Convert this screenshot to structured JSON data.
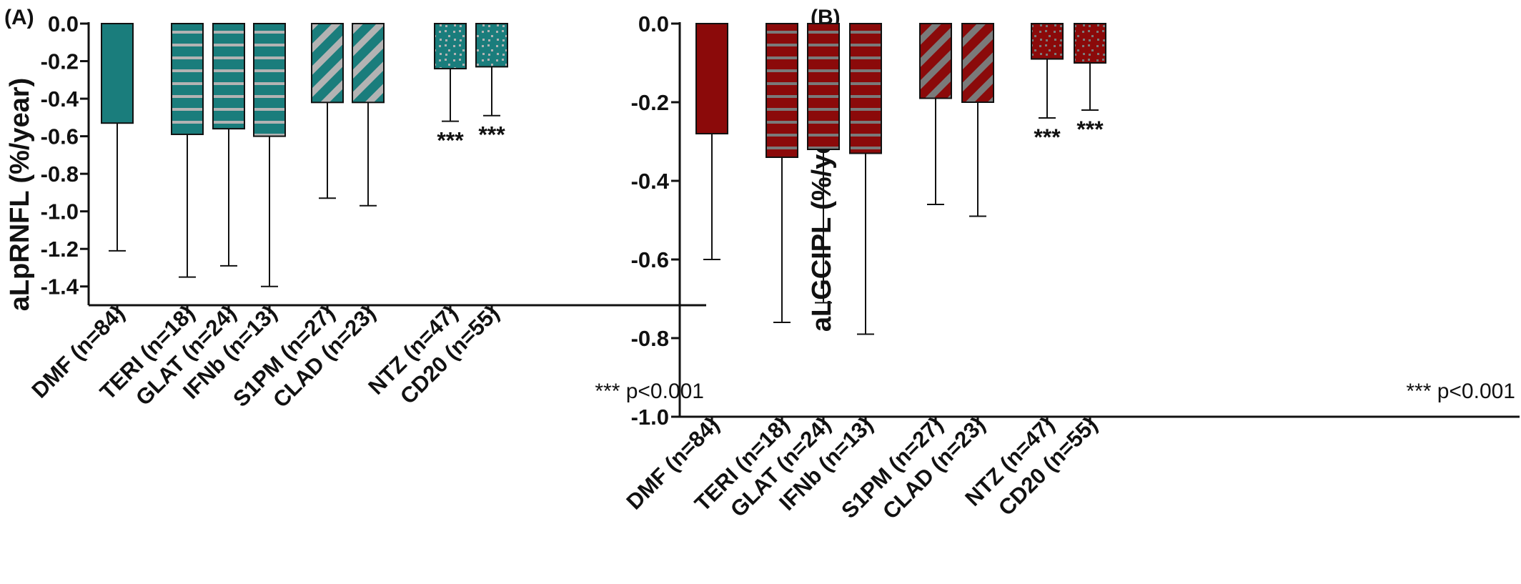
{
  "chart_data": [
    {
      "type": "bar",
      "panel_label": "(A)",
      "ylabel": "aLpRNFL (%/year)",
      "ylim": [
        -1.5,
        0.0
      ],
      "yticks": [
        "0.0",
        "-0.2",
        "-0.4",
        "-0.6",
        "-0.8",
        "-1.0",
        "-1.2",
        "-1.4"
      ],
      "ytick_values": [
        0.0,
        -0.2,
        -0.4,
        -0.6,
        -0.8,
        -1.0,
        -1.2,
        -1.4
      ],
      "categories": [
        "DMF (n=84)",
        "TERI (n=18)",
        "GLAT (n=24)",
        "IFNb (n=13)",
        "S1PM (n=27)",
        "CLAD (n=23)",
        "NTZ (n=47)",
        "CD20 (n=55)"
      ],
      "values": [
        -0.53,
        -0.59,
        -0.56,
        -0.6,
        -0.42,
        -0.42,
        -0.24,
        -0.23
      ],
      "error_bar_ends": [
        -1.21,
        -1.35,
        -1.29,
        -1.4,
        -0.93,
        -0.97,
        -0.52,
        -0.49
      ],
      "patterns": [
        "solid",
        "horizontal",
        "horizontal",
        "horizontal",
        "diagonal",
        "diagonal",
        "dotted",
        "dotted"
      ],
      "significance": [
        "",
        "",
        "",
        "",
        "",
        "",
        "***",
        "***"
      ],
      "annotation": "*** p<0.001",
      "bar_color": "#1a7d7c",
      "pattern_color": "#b3b3b3",
      "grid": false
    },
    {
      "type": "bar",
      "panel_label": "(B)",
      "ylabel": "aLGCIPL (%/year)",
      "ylim": [
        -1.0,
        0.0
      ],
      "yticks": [
        "0.0",
        "-0.2",
        "-0.4",
        "-0.6",
        "-0.8",
        "-1.0"
      ],
      "ytick_values": [
        0.0,
        -0.2,
        -0.4,
        -0.6,
        -0.8,
        -1.0
      ],
      "categories": [
        "DMF (n=84)",
        "TERI (n=18)",
        "GLAT (n=24)",
        "IFNb (n=13)",
        "S1PM (n=27)",
        "CLAD (n=23)",
        "NTZ (n=47)",
        "CD20 (n=55)"
      ],
      "values": [
        -0.28,
        -0.34,
        -0.32,
        -0.33,
        -0.19,
        -0.2,
        -0.09,
        -0.1
      ],
      "error_bar_ends": [
        -0.6,
        -0.76,
        -0.71,
        -0.79,
        -0.46,
        -0.49,
        -0.24,
        -0.22
      ],
      "patterns": [
        "solid",
        "horizontal",
        "horizontal",
        "horizontal",
        "diagonal",
        "diagonal",
        "dotted",
        "dotted"
      ],
      "significance": [
        "",
        "",
        "",
        "",
        "",
        "",
        "***",
        "***"
      ],
      "annotation": "*** p<0.001",
      "bar_color": "#8b0a0a",
      "pattern_color": "#7a7a7a",
      "grid": false
    }
  ]
}
